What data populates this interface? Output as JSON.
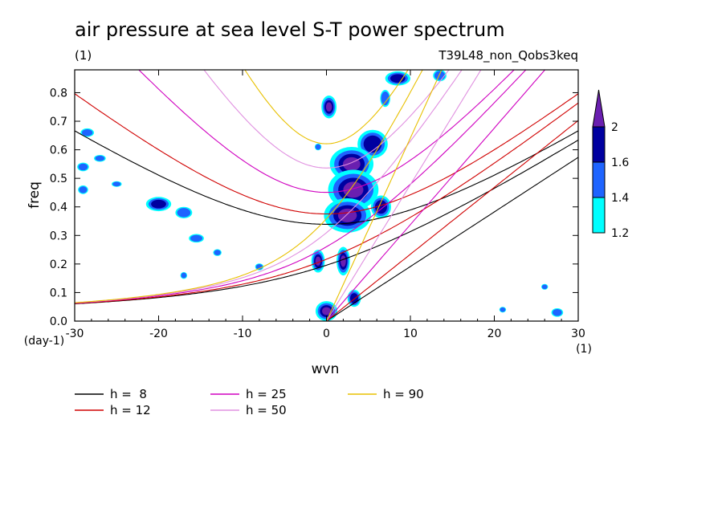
{
  "chart_data": {
    "type": "contour",
    "title": "air pressure at sea level S-T power spectrum",
    "subtitle_left": "(1)",
    "subtitle_right": "T39L48_non_Qobs3keq",
    "xlabel": "wvn",
    "ylabel": "freq",
    "x_unit": "(1)",
    "y_unit": "(day-1)",
    "xlim": [
      -30,
      30
    ],
    "ylim": [
      0,
      0.88
    ],
    "x_ticks": [
      -30,
      -20,
      -10,
      0,
      10,
      20,
      30
    ],
    "x_tick_labels": [
      "-30",
      "-20",
      "-10",
      "0",
      "10",
      "20",
      "30"
    ],
    "y_ticks": [
      0,
      0.1,
      0.2,
      0.3,
      0.4,
      0.5,
      0.6,
      0.7,
      0.8
    ],
    "y_tick_labels": [
      "0.0",
      "0.1",
      "0.2",
      "0.3",
      "0.4",
      "0.5",
      "0.6",
      "0.7",
      "0.8"
    ],
    "colorbar": {
      "levels": [
        1.2,
        1.4,
        1.6,
        2
      ],
      "level_labels": [
        "1.2",
        "1.4",
        "1.6",
        "2"
      ],
      "colors": [
        "#00ffff",
        "#1e64ff",
        "#0000a0",
        "#6a1fb0"
      ]
    },
    "dispersion_curves": [
      {
        "label": "h =  8",
        "h": 8,
        "color": "#000000"
      },
      {
        "label": "h = 12",
        "h": 12,
        "color": "#d00000"
      },
      {
        "label": "h = 25",
        "h": 25,
        "color": "#d000c0"
      },
      {
        "label": "h = 50",
        "h": 50,
        "color": "#e090e0"
      },
      {
        "label": "h = 90",
        "h": 90,
        "color": "#e8c000"
      }
    ],
    "blobs": [
      {
        "x": 0.3,
        "y": 0.75,
        "rx": 0.9,
        "ry": 0.04,
        "level": 3
      },
      {
        "x": 5.5,
        "y": 0.62,
        "rx": 1.8,
        "ry": 0.05,
        "level": 2
      },
      {
        "x": 3.0,
        "y": 0.55,
        "rx": 2.6,
        "ry": 0.06,
        "level": 3
      },
      {
        "x": 3.2,
        "y": 0.46,
        "rx": 3.0,
        "ry": 0.07,
        "level": 3
      },
      {
        "x": 2.5,
        "y": 0.37,
        "rx": 2.8,
        "ry": 0.06,
        "level": 3
      },
      {
        "x": 6.5,
        "y": 0.4,
        "rx": 1.2,
        "ry": 0.04,
        "level": 2
      },
      {
        "x": -1.0,
        "y": 0.21,
        "rx": 0.8,
        "ry": 0.04,
        "level": 3
      },
      {
        "x": 2.0,
        "y": 0.21,
        "rx": 0.8,
        "ry": 0.05,
        "level": 3
      },
      {
        "x": 3.3,
        "y": 0.08,
        "rx": 0.8,
        "ry": 0.03,
        "level": 2
      },
      {
        "x": 0.0,
        "y": 0.035,
        "rx": 1.3,
        "ry": 0.035,
        "level": 3
      },
      {
        "x": 8.5,
        "y": 0.85,
        "rx": 1.5,
        "ry": 0.025,
        "level": 2
      },
      {
        "x": 13.5,
        "y": 0.86,
        "rx": 0.8,
        "ry": 0.02,
        "level": 1
      },
      {
        "x": 7.0,
        "y": 0.78,
        "rx": 0.6,
        "ry": 0.03,
        "level": 1
      },
      {
        "x": -20.0,
        "y": 0.41,
        "rx": 1.5,
        "ry": 0.025,
        "level": 2
      },
      {
        "x": -17.0,
        "y": 0.38,
        "rx": 1.0,
        "ry": 0.02,
        "level": 1
      },
      {
        "x": -28.5,
        "y": 0.66,
        "rx": 0.8,
        "ry": 0.015,
        "level": 1
      },
      {
        "x": -29.0,
        "y": 0.54,
        "rx": 0.7,
        "ry": 0.015,
        "level": 1
      },
      {
        "x": -29.0,
        "y": 0.46,
        "rx": 0.6,
        "ry": 0.015,
        "level": 1
      },
      {
        "x": -27.0,
        "y": 0.57,
        "rx": 0.7,
        "ry": 0.012,
        "level": 1
      },
      {
        "x": -15.5,
        "y": 0.29,
        "rx": 0.9,
        "ry": 0.015,
        "level": 1
      },
      {
        "x": -13.0,
        "y": 0.24,
        "rx": 0.5,
        "ry": 0.012,
        "level": 1
      },
      {
        "x": -25.0,
        "y": 0.48,
        "rx": 0.6,
        "ry": 0.01,
        "level": 1
      },
      {
        "x": -8.0,
        "y": 0.19,
        "rx": 0.5,
        "ry": 0.012,
        "level": 1
      },
      {
        "x": -17.0,
        "y": 0.16,
        "rx": 0.4,
        "ry": 0.012,
        "level": 1
      },
      {
        "x": -1.0,
        "y": 0.61,
        "rx": 0.4,
        "ry": 0.012,
        "level": 1
      },
      {
        "x": 27.5,
        "y": 0.03,
        "rx": 0.7,
        "ry": 0.015,
        "level": 1
      },
      {
        "x": 21.0,
        "y": 0.04,
        "rx": 0.4,
        "ry": 0.01,
        "level": 1
      },
      {
        "x": 26.0,
        "y": 0.12,
        "rx": 0.4,
        "ry": 0.01,
        "level": 1
      }
    ]
  }
}
